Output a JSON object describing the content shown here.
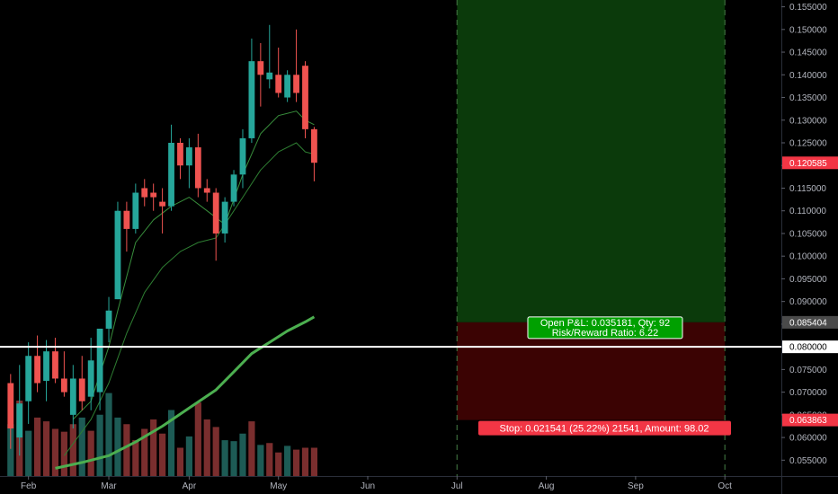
{
  "chart_data": {
    "type": "candlestick",
    "price_axis": {
      "ylim": [
        0.0515,
        0.1565
      ],
      "ticks": [
        "0.155000",
        "0.150000",
        "0.145000",
        "0.140000",
        "0.135000",
        "0.130000",
        "0.125000",
        "0.120000",
        "0.115000",
        "0.110000",
        "0.105000",
        "0.100000",
        "0.095000",
        "0.090000",
        "0.085000",
        "0.080000",
        "0.075000",
        "0.070000",
        "0.065000",
        "0.060000",
        "0.055000"
      ]
    },
    "time_axis": {
      "labels": [
        {
          "text": "Feb",
          "idx": 2
        },
        {
          "text": "Mar",
          "idx": 11
        },
        {
          "text": "Apr",
          "idx": 20
        },
        {
          "text": "May",
          "idx": 30
        },
        {
          "text": "Jun",
          "idx": 40
        },
        {
          "text": "Jul",
          "idx": 50
        },
        {
          "text": "Aug",
          "idx": 60
        },
        {
          "text": "Sep",
          "idx": 70
        },
        {
          "text": "Oct",
          "idx": 80
        }
      ]
    },
    "candles": [
      {
        "o": 0.072,
        "h": 0.074,
        "l": 0.0575,
        "c": 0.062
      },
      {
        "o": 0.06,
        "h": 0.076,
        "l": 0.056,
        "c": 0.0675
      },
      {
        "o": 0.068,
        "h": 0.081,
        "l": 0.063,
        "c": 0.078
      },
      {
        "o": 0.078,
        "h": 0.0825,
        "l": 0.07,
        "c": 0.072
      },
      {
        "o": 0.0725,
        "h": 0.0815,
        "l": 0.068,
        "c": 0.079
      },
      {
        "o": 0.079,
        "h": 0.082,
        "l": 0.072,
        "c": 0.073
      },
      {
        "o": 0.073,
        "h": 0.079,
        "l": 0.069,
        "c": 0.07
      },
      {
        "o": 0.065,
        "h": 0.076,
        "l": 0.062,
        "c": 0.073
      },
      {
        "o": 0.073,
        "h": 0.078,
        "l": 0.066,
        "c": 0.068
      },
      {
        "o": 0.069,
        "h": 0.082,
        "l": 0.066,
        "c": 0.077
      },
      {
        "o": 0.07,
        "h": 0.084,
        "l": 0.066,
        "c": 0.084
      },
      {
        "o": 0.084,
        "h": 0.091,
        "l": 0.081,
        "c": 0.088
      },
      {
        "o": 0.0905,
        "h": 0.112,
        "l": 0.0905,
        "c": 0.11
      },
      {
        "o": 0.11,
        "h": 0.112,
        "l": 0.101,
        "c": 0.106
      },
      {
        "o": 0.106,
        "h": 0.116,
        "l": 0.105,
        "c": 0.114
      },
      {
        "o": 0.115,
        "h": 0.117,
        "l": 0.111,
        "c": 0.113
      },
      {
        "o": 0.114,
        "h": 0.116,
        "l": 0.11,
        "c": 0.113
      },
      {
        "o": 0.112,
        "h": 0.115,
        "l": 0.105,
        "c": 0.111
      },
      {
        "o": 0.111,
        "h": 0.129,
        "l": 0.11,
        "c": 0.125
      },
      {
        "o": 0.125,
        "h": 0.126,
        "l": 0.117,
        "c": 0.12
      },
      {
        "o": 0.12,
        "h": 0.126,
        "l": 0.115,
        "c": 0.124
      },
      {
        "o": 0.124,
        "h": 0.127,
        "l": 0.113,
        "c": 0.115
      },
      {
        "o": 0.115,
        "h": 0.117,
        "l": 0.112,
        "c": 0.114
      },
      {
        "o": 0.114,
        "h": 0.115,
        "l": 0.099,
        "c": 0.105
      },
      {
        "o": 0.105,
        "h": 0.113,
        "l": 0.103,
        "c": 0.112
      },
      {
        "o": 0.112,
        "h": 0.119,
        "l": 0.111,
        "c": 0.118
      },
      {
        "o": 0.118,
        "h": 0.128,
        "l": 0.115,
        "c": 0.126
      },
      {
        "o": 0.126,
        "h": 0.148,
        "l": 0.125,
        "c": 0.143
      },
      {
        "o": 0.143,
        "h": 0.147,
        "l": 0.133,
        "c": 0.14
      },
      {
        "o": 0.139,
        "h": 0.151,
        "l": 0.137,
        "c": 0.1405
      },
      {
        "o": 0.14,
        "h": 0.146,
        "l": 0.135,
        "c": 0.136
      },
      {
        "o": 0.135,
        "h": 0.141,
        "l": 0.134,
        "c": 0.14
      },
      {
        "o": 0.14,
        "h": 0.15,
        "l": 0.134,
        "c": 0.136
      },
      {
        "o": 0.142,
        "h": 0.143,
        "l": 0.126,
        "c": 0.128
      },
      {
        "o": 0.128,
        "h": 0.1285,
        "l": 0.1165,
        "c": 0.1206
      }
    ],
    "volume": {
      "ymax": 1.0,
      "values": [
        {
          "v": 0.55,
          "up": true
        },
        {
          "v": 0.8,
          "up": false
        },
        {
          "v": 0.48,
          "up": true
        },
        {
          "v": 0.62,
          "up": false
        },
        {
          "v": 0.58,
          "up": false
        },
        {
          "v": 0.5,
          "up": false
        },
        {
          "v": 0.47,
          "up": false
        },
        {
          "v": 0.55,
          "up": false
        },
        {
          "v": 0.62,
          "up": true
        },
        {
          "v": 0.48,
          "up": false
        },
        {
          "v": 0.65,
          "up": true
        },
        {
          "v": 0.88,
          "up": true
        },
        {
          "v": 0.62,
          "up": true
        },
        {
          "v": 0.55,
          "up": false
        },
        {
          "v": 0.38,
          "up": false
        },
        {
          "v": 0.5,
          "up": false
        },
        {
          "v": 0.6,
          "up": false
        },
        {
          "v": 0.45,
          "up": false
        },
        {
          "v": 0.7,
          "up": true
        },
        {
          "v": 0.3,
          "up": false
        },
        {
          "v": 0.42,
          "up": true
        },
        {
          "v": 0.78,
          "up": false
        },
        {
          "v": 0.6,
          "up": false
        },
        {
          "v": 0.52,
          "up": false
        },
        {
          "v": 0.38,
          "up": true
        },
        {
          "v": 0.37,
          "up": true
        },
        {
          "v": 0.45,
          "up": true
        },
        {
          "v": 0.58,
          "up": false
        },
        {
          "v": 0.33,
          "up": true
        },
        {
          "v": 0.35,
          "up": false
        },
        {
          "v": 0.25,
          "up": false
        },
        {
          "v": 0.32,
          "up": true
        },
        {
          "v": 0.28,
          "up": false
        },
        {
          "v": 0.3,
          "up": false
        },
        {
          "v": 0.3,
          "up": false
        }
      ]
    },
    "ma_long": [
      {
        "i": 5,
        "p": 0.0532
      },
      {
        "i": 8,
        "p": 0.0545
      },
      {
        "i": 11,
        "p": 0.056
      },
      {
        "i": 14,
        "p": 0.059
      },
      {
        "i": 17,
        "p": 0.0625
      },
      {
        "i": 20,
        "p": 0.0665
      },
      {
        "i": 23,
        "p": 0.0705
      },
      {
        "i": 25,
        "p": 0.0745
      },
      {
        "i": 27,
        "p": 0.0785
      },
      {
        "i": 29,
        "p": 0.081
      },
      {
        "i": 31,
        "p": 0.0835
      },
      {
        "i": 33,
        "p": 0.0855
      },
      {
        "i": 34,
        "p": 0.0866
      }
    ],
    "ma_mid": [
      {
        "i": 6,
        "p": 0.056
      },
      {
        "i": 9,
        "p": 0.064
      },
      {
        "i": 11,
        "p": 0.072
      },
      {
        "i": 13,
        "p": 0.083
      },
      {
        "i": 15,
        "p": 0.092
      },
      {
        "i": 17,
        "p": 0.0975
      },
      {
        "i": 19,
        "p": 0.101
      },
      {
        "i": 21,
        "p": 0.103
      },
      {
        "i": 23,
        "p": 0.104
      },
      {
        "i": 24,
        "p": 0.107
      },
      {
        "i": 26,
        "p": 0.113
      },
      {
        "i": 28,
        "p": 0.119
      },
      {
        "i": 30,
        "p": 0.123
      },
      {
        "i": 32,
        "p": 0.125
      },
      {
        "i": 33,
        "p": 0.123
      },
      {
        "i": 34,
        "p": 0.1225
      }
    ],
    "ma_short": [
      {
        "i": 7,
        "p": 0.064
      },
      {
        "i": 9,
        "p": 0.068
      },
      {
        "i": 11,
        "p": 0.08
      },
      {
        "i": 12,
        "p": 0.088
      },
      {
        "i": 14,
        "p": 0.103
      },
      {
        "i": 16,
        "p": 0.108
      },
      {
        "i": 18,
        "p": 0.111
      },
      {
        "i": 20,
        "p": 0.113
      },
      {
        "i": 22,
        "p": 0.11
      },
      {
        "i": 24,
        "p": 0.107
      },
      {
        "i": 26,
        "p": 0.118
      },
      {
        "i": 28,
        "p": 0.127
      },
      {
        "i": 30,
        "p": 0.131
      },
      {
        "i": 32,
        "p": 0.132
      },
      {
        "i": 33,
        "p": 0.13
      },
      {
        "i": 34,
        "p": 0.129
      }
    ],
    "horizontal_line": 0.08,
    "position": {
      "start_idx": 50,
      "end_idx": 80,
      "entry": 0.085404,
      "stop": 0.063863,
      "target_top": 0.1565,
      "pnl_line1": "Open P&L: 0.035181, Qty: 92",
      "pnl_line2": "Risk/Reward Ratio: 6.22",
      "stop_text": "Stop: 0.021541 (25.22%) 21541, Amount: 98.02"
    },
    "price_tags": [
      {
        "text": "0.120585",
        "price": 0.120585,
        "color": "#f23645"
      },
      {
        "text": "0.085404",
        "price": 0.085404,
        "color": "#4a4a4a"
      },
      {
        "text": "0.080000",
        "price": 0.08,
        "color": "#ffffff"
      },
      {
        "text": "0.063863",
        "price": 0.063863,
        "color": "#f23645"
      }
    ],
    "colors": {
      "up": "#26a69a",
      "down": "#ef5350",
      "vol_up": "#1d5b55",
      "vol_down": "#7a2e2e",
      "ma_long": "#4caf50",
      "ma_mid": "#2e7d32",
      "ma_short": "#388e3c",
      "target_zone": "#0b3a0b",
      "stop_zone": "#3b0303",
      "axis_text": "#b2b5be",
      "pnl_box": "#00a000"
    }
  }
}
